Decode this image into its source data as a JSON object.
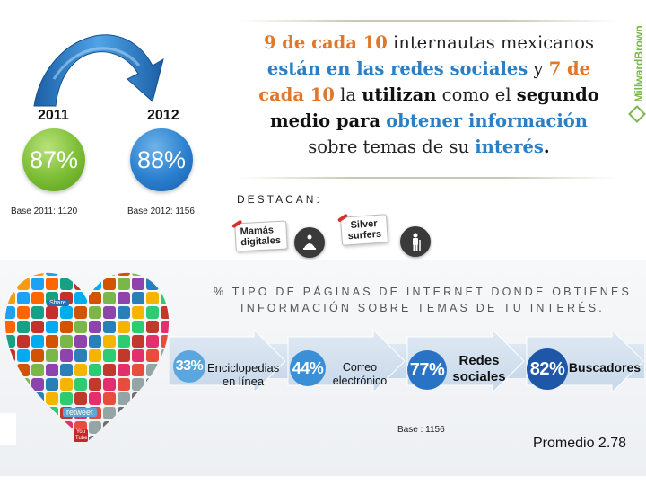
{
  "years": {
    "year_2011": "2011",
    "year_2012": "2012",
    "pct_2011": "87%",
    "pct_2012": "88%",
    "base_2011": "Base 2011: 1120",
    "base_2012": "Base 2012: 1156"
  },
  "headline": {
    "l1_a": "9 de cada 10",
    "l1_b": " internautas mexicanos",
    "l2_a": "están en las redes sociales",
    "l2_b": "  y ",
    "l2_c": "7 de",
    "l3_a": "cada 10",
    "l3_b": " la ",
    "l3_c": "utilizan",
    "l3_d": " como el ",
    "l3_e": "segundo",
    "l4_a": "medio para",
    "l4_b": " ",
    "l4_c": "obtener información",
    "l5_a": "sobre temas de su ",
    "l5_b": "interés",
    "l5_c": "."
  },
  "brand": "MillwardBrown",
  "destacan": {
    "label": "DESTACAN:",
    "tag1": "Mamás digitales",
    "tag2": "Silver surfers"
  },
  "question": {
    "line1": "% TIPO DE PÁGINAS DE INTERNET DONDE OBTIENES",
    "line2": "INFORMACIÓN SOBRE TEMAS DE TU INTERÉS."
  },
  "stats": [
    {
      "pct": "33%",
      "label1": "Enciclopedias",
      "label2": "en línea",
      "value": 33
    },
    {
      "pct": "44%",
      "label1": "Correo",
      "label2": "electrónico",
      "value": 44
    },
    {
      "pct": "77%",
      "label1": "Redes",
      "label2": "sociales",
      "value": 77
    },
    {
      "pct": "82%",
      "label1": "Buscadores",
      "label2": "",
      "value": 82
    }
  ],
  "base_bottom": "Base : 1156",
  "promedio": "Promedio 2.78",
  "heart_labels": {
    "share": "Share",
    "retweet": "retweet",
    "youtube": "You Tube"
  },
  "colors": {
    "orange": "#e0782c",
    "blue": "#2c7fc5",
    "green": "#7bbd33",
    "brand_green": "#7ab648"
  }
}
